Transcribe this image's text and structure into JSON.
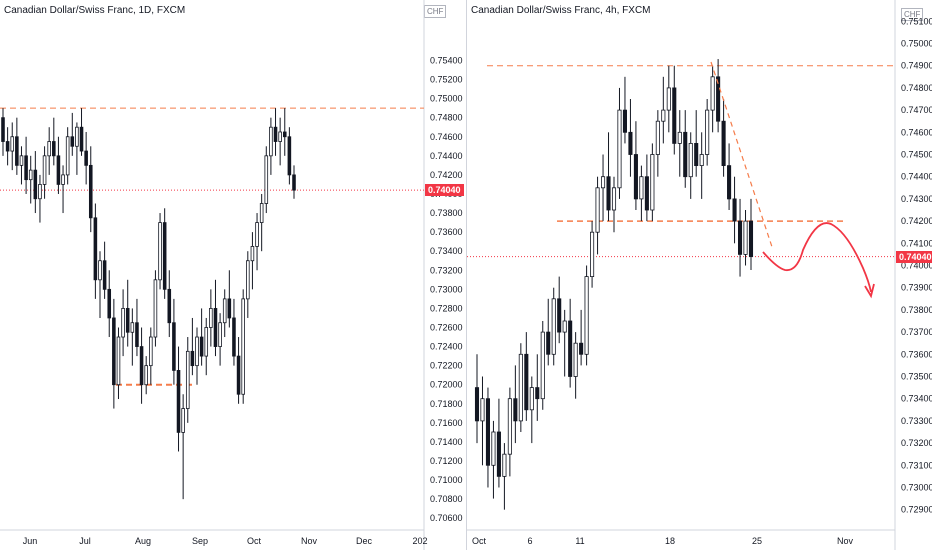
{
  "chart_data": [
    {
      "type": "candlestick",
      "title": "Canadian Dollar/Swiss Franc, 1D, FXCM",
      "currency": "CHF",
      "last_price": "0.74040",
      "ylim": [
        0.7055,
        0.7595
      ],
      "y_ticks": [
        "0.75400",
        "0.75200",
        "0.75000",
        "0.74800",
        "0.74600",
        "0.74400",
        "0.74200",
        "0.74000",
        "0.73800",
        "0.73600",
        "0.73400",
        "0.73200",
        "0.73000",
        "0.72800",
        "0.72600",
        "0.72400",
        "0.72200",
        "0.72000",
        "0.71800",
        "0.71600",
        "0.71400",
        "0.71200",
        "0.71000",
        "0.70800",
        "0.70600"
      ],
      "x_ticks": [
        "Jun",
        "Jul",
        "Aug",
        "Sep",
        "Oct",
        "Nov",
        "Dec",
        "202"
      ],
      "series": [
        {
          "values": [
            [
              0.748,
              0.749,
              0.744,
              0.7455
            ],
            [
              0.7455,
              0.747,
              0.743,
              0.7445
            ],
            [
              0.7445,
              0.7475,
              0.7425,
              0.746
            ],
            [
              0.746,
              0.748,
              0.742,
              0.743
            ],
            [
              0.743,
              0.745,
              0.741,
              0.744
            ],
            [
              0.744,
              0.746,
              0.74,
              0.7415
            ],
            [
              0.7415,
              0.744,
              0.739,
              0.7425
            ],
            [
              0.7425,
              0.7445,
              0.738,
              0.7395
            ],
            [
              0.7395,
              0.742,
              0.737,
              0.741
            ],
            [
              0.741,
              0.745,
              0.7395,
              0.744
            ],
            [
              0.744,
              0.747,
              0.742,
              0.7455
            ],
            [
              0.7455,
              0.748,
              0.743,
              0.744
            ],
            [
              0.744,
              0.746,
              0.74,
              0.741
            ],
            [
              0.741,
              0.743,
              0.738,
              0.742
            ],
            [
              0.742,
              0.747,
              0.741,
              0.746
            ],
            [
              0.746,
              0.7485,
              0.744,
              0.745
            ],
            [
              0.745,
              0.7475,
              0.742,
              0.747
            ],
            [
              0.747,
              0.749,
              0.744,
              0.7445
            ],
            [
              0.7445,
              0.7465,
              0.741,
              0.743
            ],
            [
              0.743,
              0.745,
              0.736,
              0.7375
            ],
            [
              0.7375,
              0.739,
              0.729,
              0.731
            ],
            [
              0.731,
              0.734,
              0.727,
              0.733
            ],
            [
              0.733,
              0.735,
              0.729,
              0.73
            ],
            [
              0.73,
              0.732,
              0.725,
              0.727
            ],
            [
              0.727,
              0.729,
              0.7175,
              0.72
            ],
            [
              0.72,
              0.726,
              0.7185,
              0.725
            ],
            [
              0.725,
              0.73,
              0.723,
              0.728
            ],
            [
              0.728,
              0.731,
              0.724,
              0.7255
            ],
            [
              0.7255,
              0.728,
              0.722,
              0.7265
            ],
            [
              0.7265,
              0.729,
              0.723,
              0.724
            ],
            [
              0.724,
              0.726,
              0.718,
              0.72
            ],
            [
              0.72,
              0.723,
              0.719,
              0.722
            ],
            [
              0.722,
              0.726,
              0.72,
              0.725
            ],
            [
              0.725,
              0.732,
              0.724,
              0.731
            ],
            [
              0.731,
              0.738,
              0.73,
              0.737
            ],
            [
              0.737,
              0.7385,
              0.729,
              0.73
            ],
            [
              0.73,
              0.732,
              0.725,
              0.7265
            ],
            [
              0.7265,
              0.729,
              0.72,
              0.7215
            ],
            [
              0.7215,
              0.724,
              0.713,
              0.715
            ],
            [
              0.715,
              0.719,
              0.708,
              0.7175
            ],
            [
              0.7175,
              0.725,
              0.716,
              0.7235
            ],
            [
              0.7235,
              0.727,
              0.721,
              0.722
            ],
            [
              0.722,
              0.726,
              0.72,
              0.725
            ],
            [
              0.725,
              0.728,
              0.722,
              0.723
            ],
            [
              0.723,
              0.727,
              0.721,
              0.726
            ],
            [
              0.726,
              0.73,
              0.724,
              0.728
            ],
            [
              0.728,
              0.731,
              0.723,
              0.724
            ],
            [
              0.724,
              0.7275,
              0.722,
              0.7265
            ],
            [
              0.7265,
              0.73,
              0.725,
              0.729
            ],
            [
              0.729,
              0.732,
              0.726,
              0.727
            ],
            [
              0.727,
              0.729,
              0.722,
              0.723
            ],
            [
              0.723,
              0.725,
              0.718,
              0.719
            ],
            [
              0.719,
              0.73,
              0.718,
              0.729
            ],
            [
              0.729,
              0.734,
              0.727,
              0.733
            ],
            [
              0.733,
              0.736,
              0.73,
              0.7345
            ],
            [
              0.7345,
              0.738,
              0.732,
              0.737
            ],
            [
              0.737,
              0.74,
              0.734,
              0.739
            ],
            [
              0.739,
              0.745,
              0.738,
              0.744
            ],
            [
              0.744,
              0.748,
              0.742,
              0.747
            ],
            [
              0.747,
              0.749,
              0.744,
              0.7455
            ],
            [
              0.7455,
              0.748,
              0.743,
              0.7465
            ],
            [
              0.7465,
              0.749,
              0.744,
              0.746
            ],
            [
              0.746,
              0.747,
              0.741,
              0.742
            ],
            [
              0.742,
              0.743,
              0.7395,
              0.7404
            ]
          ]
        }
      ],
      "annotations": {
        "resistance": 0.749,
        "support": 0.72
      }
    },
    {
      "type": "candlestick",
      "title": "Canadian Dollar/Swiss Franc, 4h, FXCM",
      "currency": "CHF",
      "last_price": "0.74040",
      "ylim": [
        0.7284,
        0.7516
      ],
      "y_ticks": [
        "0.75100",
        "0.75000",
        "0.74900",
        "0.74800",
        "0.74700",
        "0.74600",
        "0.74500",
        "0.74400",
        "0.74300",
        "0.74200",
        "0.74100",
        "0.74000",
        "0.73900",
        "0.73800",
        "0.73700",
        "0.73600",
        "0.73500",
        "0.73400",
        "0.73300",
        "0.73200",
        "0.73100",
        "0.73000",
        "0.72900"
      ],
      "x_ticks": [
        "Oct",
        "6",
        "11",
        "18",
        "25",
        "Nov"
      ],
      "series": [
        {
          "values": [
            [
              0.7345,
              0.736,
              0.732,
              0.733
            ],
            [
              0.733,
              0.735,
              0.731,
              0.734
            ],
            [
              0.734,
              0.7345,
              0.73,
              0.731
            ],
            [
              0.731,
              0.733,
              0.7295,
              0.7325
            ],
            [
              0.7325,
              0.734,
              0.73,
              0.7305
            ],
            [
              0.7305,
              0.732,
              0.729,
              0.7315
            ],
            [
              0.7315,
              0.7345,
              0.7305,
              0.734
            ],
            [
              0.734,
              0.7355,
              0.732,
              0.733
            ],
            [
              0.733,
              0.7365,
              0.7325,
              0.736
            ],
            [
              0.736,
              0.737,
              0.733,
              0.7335
            ],
            [
              0.7335,
              0.735,
              0.732,
              0.7345
            ],
            [
              0.7345,
              0.736,
              0.733,
              0.734
            ],
            [
              0.734,
              0.7375,
              0.7335,
              0.737
            ],
            [
              0.737,
              0.7385,
              0.7355,
              0.736
            ],
            [
              0.736,
              0.739,
              0.7355,
              0.7385
            ],
            [
              0.7385,
              0.7395,
              0.7365,
              0.737
            ],
            [
              0.737,
              0.738,
              0.735,
              0.7375
            ],
            [
              0.7375,
              0.7385,
              0.7345,
              0.735
            ],
            [
              0.735,
              0.737,
              0.734,
              0.7365
            ],
            [
              0.7365,
              0.738,
              0.7355,
              0.736
            ],
            [
              0.736,
              0.74,
              0.7355,
              0.7395
            ],
            [
              0.7395,
              0.742,
              0.739,
              0.7415
            ],
            [
              0.7415,
              0.744,
              0.7405,
              0.7435
            ],
            [
              0.7435,
              0.745,
              0.742,
              0.744
            ],
            [
              0.744,
              0.746,
              0.742,
              0.7425
            ],
            [
              0.7425,
              0.744,
              0.7415,
              0.7435
            ],
            [
              0.7435,
              0.748,
              0.743,
              0.747
            ],
            [
              0.747,
              0.7485,
              0.7455,
              0.746
            ],
            [
              0.746,
              0.7475,
              0.744,
              0.745
            ],
            [
              0.745,
              0.7465,
              0.7425,
              0.743
            ],
            [
              0.743,
              0.7445,
              0.742,
              0.744
            ],
            [
              0.744,
              0.745,
              0.742,
              0.7425
            ],
            [
              0.7425,
              0.7455,
              0.742,
              0.745
            ],
            [
              0.745,
              0.747,
              0.744,
              0.7465
            ],
            [
              0.7465,
              0.7485,
              0.7455,
              0.747
            ],
            [
              0.747,
              0.749,
              0.746,
              0.748
            ],
            [
              0.748,
              0.749,
              0.745,
              0.7455
            ],
            [
              0.7455,
              0.747,
              0.744,
              0.746
            ],
            [
              0.746,
              0.747,
              0.7435,
              0.744
            ],
            [
              0.744,
              0.746,
              0.743,
              0.7455
            ],
            [
              0.7455,
              0.747,
              0.744,
              0.7445
            ],
            [
              0.7445,
              0.746,
              0.743,
              0.745
            ],
            [
              0.745,
              0.7475,
              0.7445,
              0.747
            ],
            [
              0.747,
              0.749,
              0.746,
              0.7485
            ],
            [
              0.7485,
              0.7493,
              0.746,
              0.7465
            ],
            [
              0.7465,
              0.7475,
              0.744,
              0.7445
            ],
            [
              0.7445,
              0.7455,
              0.7425,
              0.743
            ],
            [
              0.743,
              0.744,
              0.741,
              0.742
            ],
            [
              0.742,
              0.743,
              0.7395,
              0.7405
            ],
            [
              0.7405,
              0.7425,
              0.74,
              0.742
            ],
            [
              0.742,
              0.743,
              0.7398,
              0.7404
            ]
          ]
        }
      ],
      "annotations": {
        "resistance": 0.749,
        "support": 0.742
      }
    }
  ]
}
